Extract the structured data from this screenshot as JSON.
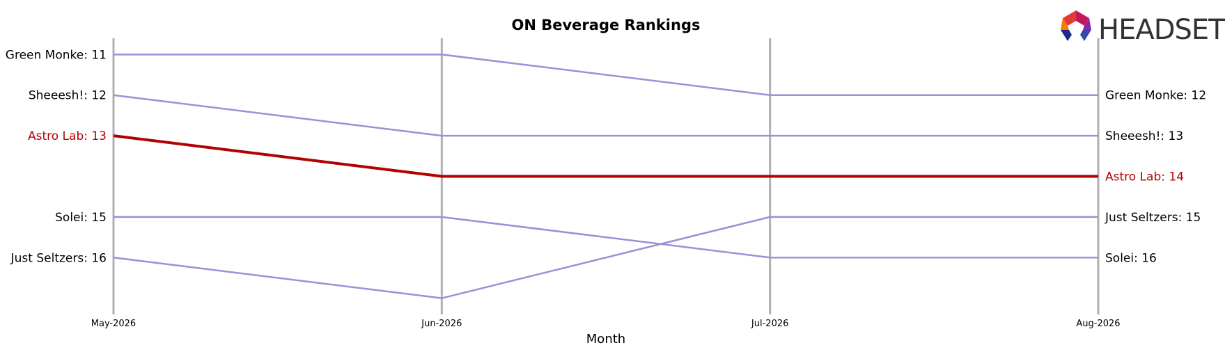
{
  "chart_data": {
    "type": "line",
    "title": "ON Beverage Rankings",
    "xlabel": "Month",
    "ylabel": "",
    "x": [
      "May-2026",
      "Jun-2026",
      "Jul-2026",
      "Aug-2026"
    ],
    "ylim": [
      17.4,
      10.6
    ],
    "y_inverted": true,
    "grid": false,
    "series": [
      {
        "name": "Green Monke",
        "values": [
          11,
          11,
          12,
          12
        ],
        "highlight": false
      },
      {
        "name": "Sheeesh!",
        "values": [
          12,
          13,
          13,
          13
        ],
        "highlight": false
      },
      {
        "name": "Astro Lab",
        "values": [
          13,
          14,
          14,
          14
        ],
        "highlight": true
      },
      {
        "name": "Solei",
        "values": [
          15,
          15,
          16,
          16
        ],
        "highlight": false
      },
      {
        "name": "Just Seltzers",
        "values": [
          16,
          17,
          15,
          15
        ],
        "highlight": false
      }
    ],
    "colors": {
      "normal": "#9b8fd6",
      "highlight": "#b30000",
      "axis": "#b0b0b0",
      "logo": "#333333"
    }
  },
  "logo": {
    "text": "HEADSET"
  }
}
